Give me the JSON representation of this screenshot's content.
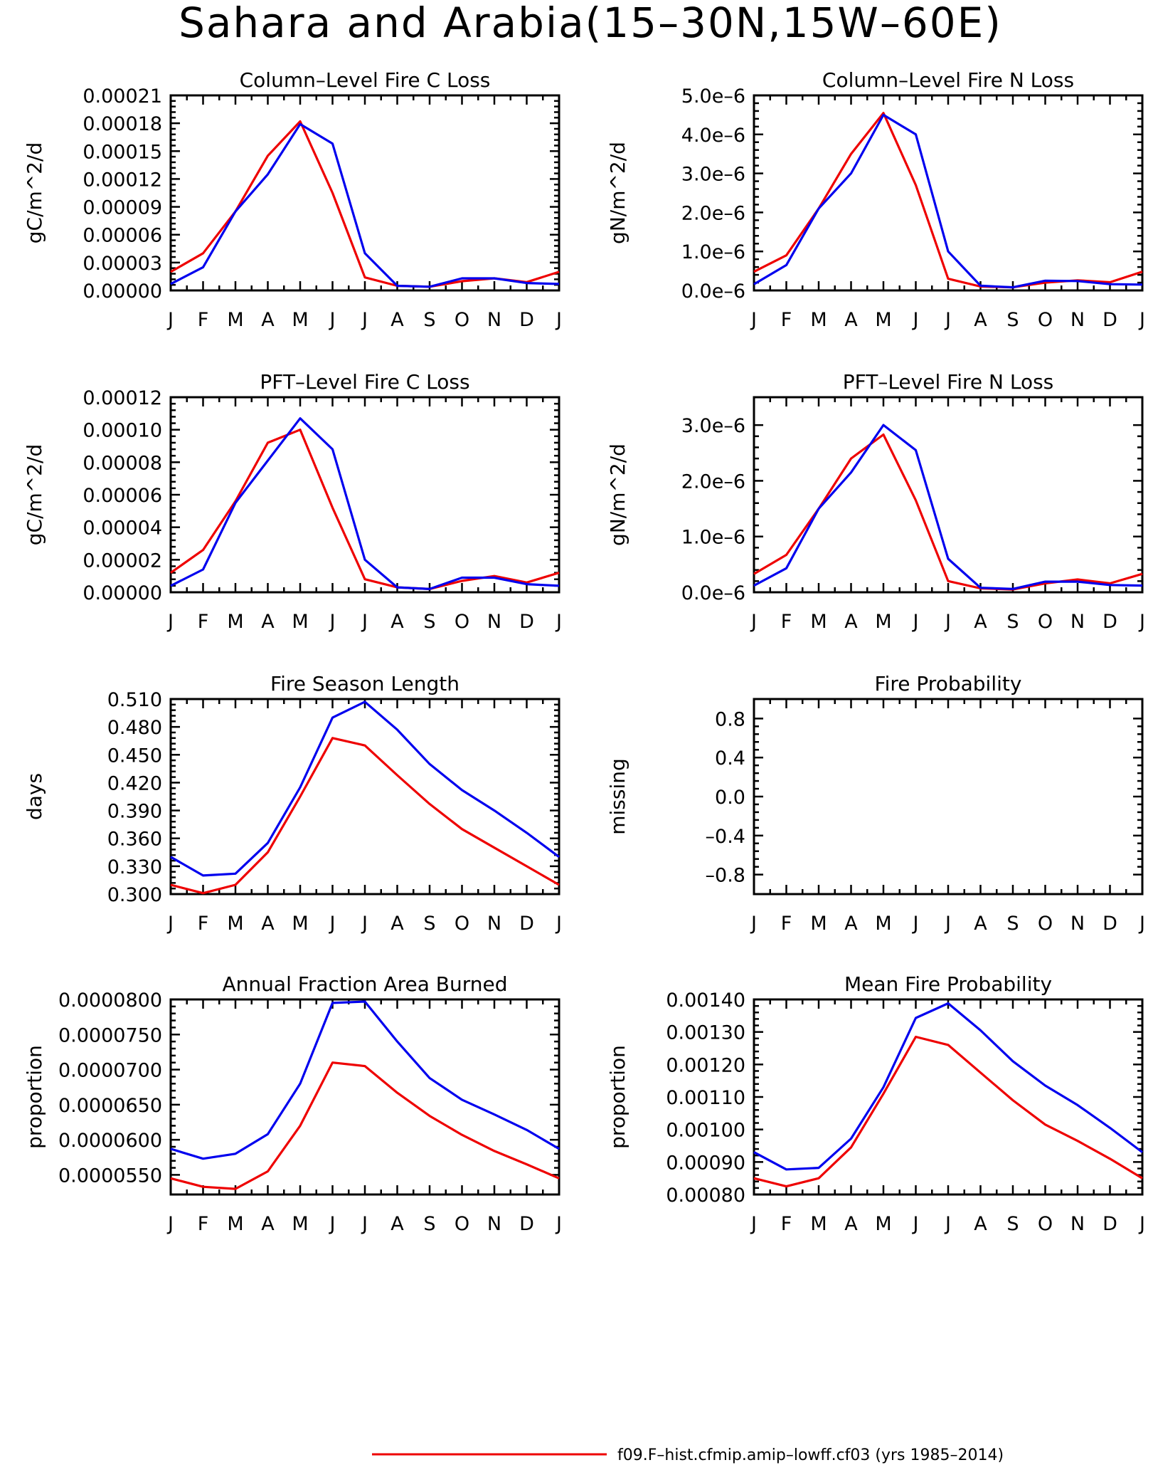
{
  "title": "Sahara and Arabia(15–30N,15W–60E)",
  "legend": {
    "entries": [
      {
        "label": "f09.F–hist.cfmip.amip–lowff.cf03 (yrs 1985–2014)",
        "color": "#ee0000"
      }
    ]
  },
  "colors": {
    "red": "#ee0000",
    "blue": "#0000ee"
  },
  "chart_data": [
    {
      "type": "line",
      "title": "Column–Level Fire C Loss",
      "ylabel": "gC/m^2/d",
      "categories": [
        "J",
        "F",
        "M",
        "A",
        "M",
        "J",
        "J",
        "A",
        "S",
        "O",
        "N",
        "D",
        "J"
      ],
      "ylim": [
        0,
        0.00021
      ],
      "yticks": [
        "0.00000",
        "0.00003",
        "0.00006",
        "0.00009",
        "0.00012",
        "0.00015",
        "0.00018",
        "0.00021"
      ],
      "series": [
        {
          "color": "#ee0000",
          "values": [
            2e-05,
            4e-05,
            8.5e-05,
            0.000145,
            0.000182,
            0.000105,
            1.4e-05,
            5e-06,
            4e-06,
            1e-05,
            1.3e-05,
            9e-06,
            2e-05
          ]
        },
        {
          "color": "#0000ee",
          "values": [
            7e-06,
            2.5e-05,
            8.5e-05,
            0.000125,
            0.000179,
            0.000158,
            4e-05,
            5e-06,
            4e-06,
            1.3e-05,
            1.3e-05,
            8e-06,
            7e-06
          ]
        }
      ]
    },
    {
      "type": "line",
      "title": "Column–Level Fire N Loss",
      "ylabel": "gN/m^2/d",
      "categories": [
        "J",
        "F",
        "M",
        "A",
        "M",
        "J",
        "J",
        "A",
        "S",
        "O",
        "N",
        "D",
        "J"
      ],
      "ylim": [
        0,
        5e-06
      ],
      "yticks": [
        "0.0e–6",
        "1.0e–6",
        "2.0e–6",
        "3.0e–6",
        "4.0e–6",
        "5.0e–6"
      ],
      "series": [
        {
          "color": "#ee0000",
          "values": [
            4.8e-07,
            9e-07,
            2.1e-06,
            3.5e-06,
            4.55e-06,
            2.7e-06,
            3e-07,
            1e-07,
            8e-08,
            2e-07,
            2.6e-07,
            2.1e-07,
            4.8e-07
          ]
        },
        {
          "color": "#0000ee",
          "values": [
            1.6e-07,
            6.5e-07,
            2.1e-06,
            3e-06,
            4.5e-06,
            4e-06,
            1e-06,
            1.2e-07,
            8e-08,
            2.5e-07,
            2.4e-07,
            1.6e-07,
            1.5e-07
          ]
        }
      ]
    },
    {
      "type": "line",
      "title": "PFT–Level Fire C Loss",
      "ylabel": "gC/m^2/d",
      "categories": [
        "J",
        "F",
        "M",
        "A",
        "M",
        "J",
        "J",
        "A",
        "S",
        "O",
        "N",
        "D",
        "J"
      ],
      "ylim": [
        0,
        0.00012
      ],
      "yticks": [
        "0.00000",
        "0.00002",
        "0.00004",
        "0.00006",
        "0.00008",
        "0.00010",
        "0.00012"
      ],
      "series": [
        {
          "color": "#ee0000",
          "values": [
            1.2e-05,
            2.6e-05,
            5.6e-05,
            9.2e-05,
            0.0001,
            5.2e-05,
            8e-06,
            3e-06,
            2e-06,
            7e-06,
            1e-05,
            6e-06,
            1.2e-05
          ]
        },
        {
          "color": "#0000ee",
          "values": [
            4e-06,
            1.4e-05,
            5.5e-05,
            8.1e-05,
            0.000107,
            8.8e-05,
            2e-05,
            3e-06,
            2e-06,
            9e-06,
            9e-06,
            5e-06,
            4e-06
          ]
        }
      ]
    },
    {
      "type": "line",
      "title": "PFT–Level Fire N Loss",
      "ylabel": "gN/m^2/d",
      "categories": [
        "J",
        "F",
        "M",
        "A",
        "M",
        "J",
        "J",
        "A",
        "S",
        "O",
        "N",
        "D",
        "J"
      ],
      "ylim": [
        0,
        3.5e-06
      ],
      "yticks": [
        "0.0e–6",
        "1.0e–6",
        "2.0e–6",
        "3.0e–6"
      ],
      "yticks_at": [
        0,
        1e-06,
        2e-06,
        3e-06
      ],
      "series": [
        {
          "color": "#ee0000",
          "values": [
            3.3e-07,
            6.7e-07,
            1.5e-06,
            2.4e-06,
            2.83e-06,
            1.65e-06,
            2e-07,
            7e-08,
            5e-08,
            1.6e-07,
            2.3e-07,
            1.6e-07,
            3.3e-07
          ]
        },
        {
          "color": "#0000ee",
          "values": [
            1.2e-07,
            4.3e-07,
            1.5e-06,
            2.15e-06,
            3e-06,
            2.55e-06,
            6e-07,
            8e-08,
            6e-08,
            1.9e-07,
            1.9e-07,
            1.3e-07,
            1.2e-07
          ]
        }
      ]
    },
    {
      "type": "line",
      "title": "Fire Season Length",
      "ylabel": "days",
      "categories": [
        "J",
        "F",
        "M",
        "A",
        "M",
        "J",
        "J",
        "A",
        "S",
        "O",
        "N",
        "D",
        "J"
      ],
      "ylim": [
        0.3,
        0.51
      ],
      "yticks": [
        "0.300",
        "0.330",
        "0.360",
        "0.390",
        "0.420",
        "0.450",
        "0.480",
        "0.510"
      ],
      "series": [
        {
          "color": "#ee0000",
          "values": [
            0.31,
            0.301,
            0.31,
            0.345,
            0.405,
            0.468,
            0.46,
            0.428,
            0.397,
            0.37,
            0.35,
            0.33,
            0.31
          ]
        },
        {
          "color": "#0000ee",
          "values": [
            0.34,
            0.32,
            0.322,
            0.355,
            0.415,
            0.49,
            0.507,
            0.477,
            0.44,
            0.412,
            0.39,
            0.366,
            0.34
          ]
        }
      ]
    },
    {
      "type": "line",
      "title": "Fire Probability",
      "ylabel": "missing",
      "categories": [
        "J",
        "F",
        "M",
        "A",
        "M",
        "J",
        "J",
        "A",
        "S",
        "O",
        "N",
        "D",
        "J"
      ],
      "ylim": [
        -1,
        1
      ],
      "yticks": [
        "–0.8",
        "–0.4",
        "0.0",
        "0.4",
        "0.8"
      ],
      "yticks_at": [
        -0.8,
        -0.4,
        0.0,
        0.4,
        0.8
      ],
      "series": []
    },
    {
      "type": "line",
      "title": "Annual Fraction Area Burned",
      "ylabel": "proportion",
      "categories": [
        "J",
        "F",
        "M",
        "A",
        "M",
        "J",
        "J",
        "A",
        "S",
        "O",
        "N",
        "D",
        "J"
      ],
      "ylim": [
        5.22e-05,
        8e-05
      ],
      "yticks": [
        "0.0000550",
        "0.0000600",
        "0.0000650",
        "0.0000700",
        "0.0000750",
        "0.0000800"
      ],
      "yticks_at": [
        5.5e-05,
        6e-05,
        6.5e-05,
        7e-05,
        7.5e-05,
        8e-05
      ],
      "series": [
        {
          "color": "#ee0000",
          "values": [
            5.45e-05,
            5.33e-05,
            5.3e-05,
            5.55e-05,
            6.2e-05,
            7.1e-05,
            7.05e-05,
            6.67e-05,
            6.34e-05,
            6.07e-05,
            5.84e-05,
            5.65e-05,
            5.45e-05
          ]
        },
        {
          "color": "#0000ee",
          "values": [
            5.87e-05,
            5.73e-05,
            5.8e-05,
            6.08e-05,
            6.8e-05,
            7.95e-05,
            7.97e-05,
            7.4e-05,
            6.88e-05,
            6.57e-05,
            6.36e-05,
            6.14e-05,
            5.87e-05
          ]
        }
      ]
    },
    {
      "type": "line",
      "title": "Mean Fire Probability",
      "ylabel": "proportion",
      "categories": [
        "J",
        "F",
        "M",
        "A",
        "M",
        "J",
        "J",
        "A",
        "S",
        "O",
        "N",
        "D",
        "J"
      ],
      "ylim": [
        0.0008,
        0.0014
      ],
      "yticks": [
        "0.00080",
        "0.00090",
        "0.00100",
        "0.00110",
        "0.00120",
        "0.00130",
        "0.00140"
      ],
      "series": [
        {
          "color": "#ee0000",
          "values": [
            0.00085,
            0.000825,
            0.00085,
            0.000945,
            0.00111,
            0.001285,
            0.00126,
            0.001175,
            0.00109,
            0.001015,
            0.000965,
            0.00091,
            0.00085
          ]
        },
        {
          "color": "#0000ee",
          "values": [
            0.00093,
            0.000877,
            0.000882,
            0.000972,
            0.00113,
            0.001343,
            0.001388,
            0.001305,
            0.00121,
            0.001135,
            0.001075,
            0.001005,
            0.00093
          ]
        }
      ]
    }
  ]
}
